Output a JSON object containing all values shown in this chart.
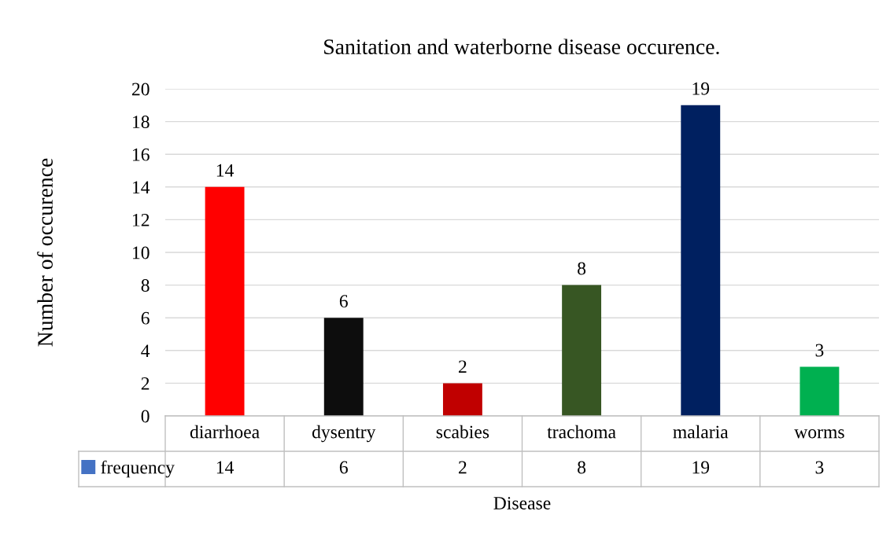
{
  "chart_data": {
    "type": "bar",
    "title": "Sanitation and waterborne disease occurence.",
    "xlabel": "Disease",
    "ylabel": "Number of occurence",
    "categories": [
      "diarrhoea",
      "dysentry",
      "scabies",
      "trachoma",
      "malaria",
      "worms"
    ],
    "series": [
      {
        "name": "frequency",
        "color": "#4472c4",
        "colors": [
          "#ff0000",
          "#0d0d0d",
          "#c00000",
          "#375623",
          "#002060",
          "#00b050"
        ],
        "values": [
          14,
          6,
          2,
          8,
          19,
          3
        ]
      }
    ],
    "annotations": [
      "14",
      "6",
      "2",
      "8",
      "19",
      "3"
    ],
    "ylim": [
      0,
      20
    ],
    "yticks": [
      0,
      2,
      4,
      6,
      8,
      10,
      12,
      14,
      16,
      18,
      20
    ],
    "grid": "y",
    "data_labels": true,
    "legend": "bottom left"
  }
}
